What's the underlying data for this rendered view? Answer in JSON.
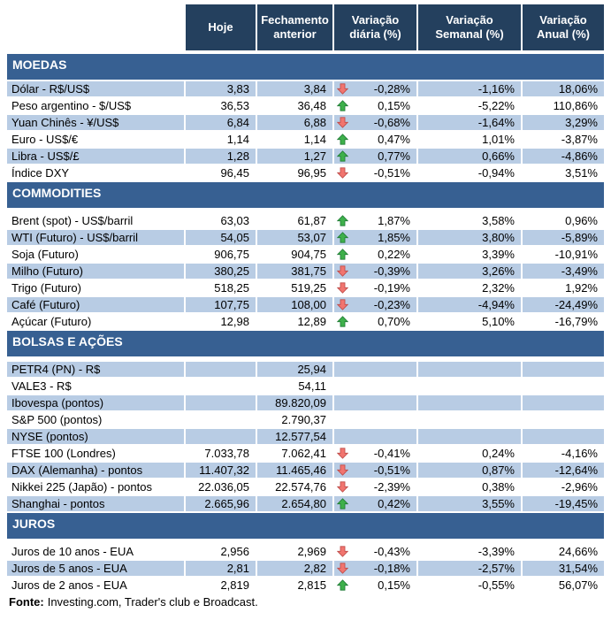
{
  "chart_data": {
    "type": "table",
    "columns": [
      "Hoje",
      "Fechamento anterior",
      "Variação diária (%)",
      "Variação Semanal (%)",
      "Variação Anual (%)"
    ],
    "sections": [
      {
        "title": "MOEDAS",
        "rows": [
          {
            "label": "Dólar - R$/US$",
            "hoje": "3,83",
            "fechamento": "3,84",
            "arrow": "down",
            "diaria": "-0,28%",
            "semanal": "-1,16%",
            "anual": "18,06%"
          },
          {
            "label": "Peso argentino - $/US$",
            "hoje": "36,53",
            "fechamento": "36,48",
            "arrow": "up",
            "diaria": "0,15%",
            "semanal": "-5,22%",
            "anual": "110,86%"
          },
          {
            "label": "Yuan Chinês - ¥/US$",
            "hoje": "6,84",
            "fechamento": "6,88",
            "arrow": "down",
            "diaria": "-0,68%",
            "semanal": "-1,64%",
            "anual": "3,29%"
          },
          {
            "label": "Euro - US$/€",
            "hoje": "1,14",
            "fechamento": "1,14",
            "arrow": "up",
            "diaria": "0,47%",
            "semanal": "1,01%",
            "anual": "-3,87%"
          },
          {
            "label": "Libra - US$/£",
            "hoje": "1,28",
            "fechamento": "1,27",
            "arrow": "up",
            "diaria": "0,77%",
            "semanal": "0,66%",
            "anual": "-4,86%"
          },
          {
            "label": "Índice DXY",
            "hoje": "96,45",
            "fechamento": "96,95",
            "arrow": "down",
            "diaria": "-0,51%",
            "semanal": "-0,94%",
            "anual": "3,51%"
          }
        ]
      },
      {
        "title": "COMMODITIES",
        "rows": [
          {
            "label": "Brent (spot) - US$/barril",
            "hoje": "63,03",
            "fechamento": "61,87",
            "arrow": "up",
            "diaria": "1,87%",
            "semanal": "3,58%",
            "anual": "0,96%"
          },
          {
            "label": "WTI (Futuro) - US$/barril",
            "hoje": "54,05",
            "fechamento": "53,07",
            "arrow": "up",
            "diaria": "1,85%",
            "semanal": "3,80%",
            "anual": "-5,89%"
          },
          {
            "label": "Soja (Futuro)",
            "hoje": "906,75",
            "fechamento": "904,75",
            "arrow": "up",
            "diaria": "0,22%",
            "semanal": "3,39%",
            "anual": "-10,91%"
          },
          {
            "label": "Milho (Futuro)",
            "hoje": "380,25",
            "fechamento": "381,75",
            "arrow": "down",
            "diaria": "-0,39%",
            "semanal": "3,26%",
            "anual": "-3,49%"
          },
          {
            "label": "Trigo (Futuro)",
            "hoje": "518,25",
            "fechamento": "519,25",
            "arrow": "down",
            "diaria": "-0,19%",
            "semanal": "2,32%",
            "anual": "1,92%"
          },
          {
            "label": "Café (Futuro)",
            "hoje": "107,75",
            "fechamento": "108,00",
            "arrow": "down",
            "diaria": "-0,23%",
            "semanal": "-4,94%",
            "anual": "-24,49%"
          },
          {
            "label": "Açúcar (Futuro)",
            "hoje": "12,98",
            "fechamento": "12,89",
            "arrow": "up",
            "diaria": "0,70%",
            "semanal": "5,10%",
            "anual": "-16,79%"
          }
        ]
      },
      {
        "title": "BOLSAS E AÇÕES",
        "rows": [
          {
            "label": "PETR4 (PN) - R$",
            "hoje": "",
            "fechamento": "25,94",
            "arrow": "",
            "diaria": "",
            "semanal": "",
            "anual": ""
          },
          {
            "label": "VALE3 - R$",
            "hoje": "",
            "fechamento": "54,11",
            "arrow": "",
            "diaria": "",
            "semanal": "",
            "anual": ""
          },
          {
            "label": "Ibovespa (pontos)",
            "hoje": "",
            "fechamento": "89.820,09",
            "arrow": "",
            "diaria": "",
            "semanal": "",
            "anual": ""
          },
          {
            "label": "S&P 500 (pontos)",
            "hoje": "",
            "fechamento": "2.790,37",
            "arrow": "",
            "diaria": "",
            "semanal": "",
            "anual": ""
          },
          {
            "label": "NYSE (pontos)",
            "hoje": "",
            "fechamento": "12.577,54",
            "arrow": "",
            "diaria": "",
            "semanal": "",
            "anual": ""
          },
          {
            "label": "FTSE 100 (Londres)",
            "hoje": "7.033,78",
            "fechamento": "7.062,41",
            "arrow": "down",
            "diaria": "-0,41%",
            "semanal": "0,24%",
            "anual": "-4,16%"
          },
          {
            "label": "DAX (Alemanha) - pontos",
            "hoje": "11.407,32",
            "fechamento": "11.465,46",
            "arrow": "down",
            "diaria": "-0,51%",
            "semanal": "0,87%",
            "anual": "-12,64%"
          },
          {
            "label": "Nikkei 225 (Japão) - pontos",
            "hoje": "22.036,05",
            "fechamento": "22.574,76",
            "arrow": "down",
            "diaria": "-2,39%",
            "semanal": "0,38%",
            "anual": "-2,96%"
          },
          {
            "label": "Shanghai - pontos",
            "hoje": "2.665,96",
            "fechamento": "2.654,80",
            "arrow": "up",
            "diaria": "0,42%",
            "semanal": "3,55%",
            "anual": "-19,45%"
          }
        ]
      },
      {
        "title": "JUROS",
        "rows": [
          {
            "label": "Juros de 10 anos - EUA",
            "hoje": "2,956",
            "fechamento": "2,969",
            "arrow": "down",
            "diaria": "-0,43%",
            "semanal": "-3,39%",
            "anual": "24,66%"
          },
          {
            "label": "Juros de 5 anos - EUA",
            "hoje": "2,81",
            "fechamento": "2,82",
            "arrow": "down",
            "diaria": "-0,18%",
            "semanal": "-2,57%",
            "anual": "31,54%"
          },
          {
            "label": "Juros de 2 anos - EUA",
            "hoje": "2,819",
            "fechamento": "2,815",
            "arrow": "up",
            "diaria": "0,15%",
            "semanal": "-0,55%",
            "anual": "56,07%"
          }
        ]
      }
    ]
  },
  "footer": {
    "bold": "Fonte:",
    "text": "Investing.com, Trader's club e Broadcast."
  },
  "icons": {
    "up": "up-arrow-icon",
    "down": "down-arrow-icon"
  },
  "colors": {
    "header_bg": "#24405E",
    "section_bg": "#376092",
    "row_shaded": "#B8CCE4",
    "row_plain": "#FFFFFF",
    "up_arrow_fill": "#3EB04B",
    "up_arrow_stroke": "#1E7B34",
    "down_arrow_fill": "#F1756F",
    "down_arrow_stroke": "#BE4B48"
  }
}
